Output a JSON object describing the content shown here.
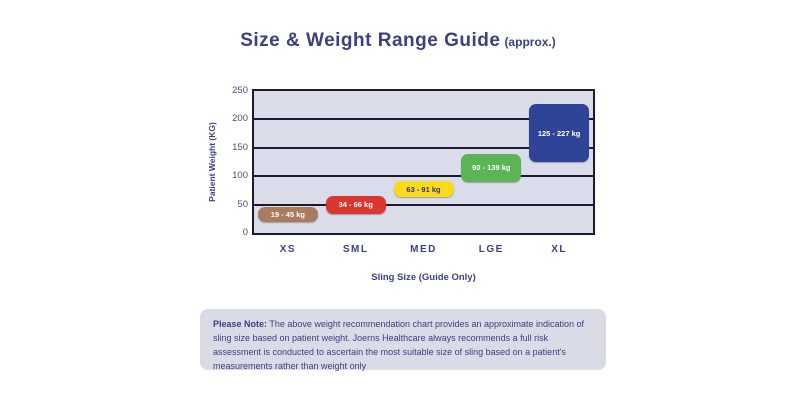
{
  "title": {
    "main": "Size & Weight Range Guide",
    "suffix": "(approx.)"
  },
  "chart_data": {
    "type": "bar",
    "subtype": "floating-range-bars",
    "title": "Size & Weight Range Guide (approx.)",
    "xlabel": "Sling Size (Guide Only)",
    "ylabel": "Patient Weight (KG)",
    "ylim": [
      0,
      250
    ],
    "yticks": [
      0,
      50,
      100,
      150,
      200,
      250
    ],
    "grid": "on",
    "plot_bg_color": "#dadce9",
    "grid_color": "#1b1b2f",
    "categories": [
      "XS",
      "SML",
      "MED",
      "LGE",
      "XL"
    ],
    "series": [
      {
        "name": "XS",
        "low_kg": 19,
        "high_kg": 45,
        "label": "19 - 45 kg",
        "color": "#ab7b60",
        "text_color": "#ffffff"
      },
      {
        "name": "SML",
        "low_kg": 34,
        "high_kg": 66,
        "label": "34 - 66 kg",
        "color": "#d8382f",
        "text_color": "#ffffff"
      },
      {
        "name": "MED",
        "low_kg": 63,
        "high_kg": 91,
        "label": "63 - 91 kg",
        "color": "#f8dc1c",
        "text_color": "#2f3470"
      },
      {
        "name": "LGE",
        "low_kg": 90,
        "high_kg": 139,
        "label": "90 - 139 kg",
        "color": "#5cb554",
        "text_color": "#ffffff"
      },
      {
        "name": "XL",
        "low_kg": 125,
        "high_kg": 227,
        "label": "125 - 227 kg",
        "color": "#2f4496",
        "text_color": "#ffffff"
      }
    ]
  },
  "note": {
    "label": "Please Note:",
    "text": "The above weight recommendation chart provides an approximate indication of sling size based on patient weight. Joerns Healthcare always recommends a full risk assessment is conducted to ascertain the most suitable size of sling based on a patient's measurements rather than weight only"
  }
}
